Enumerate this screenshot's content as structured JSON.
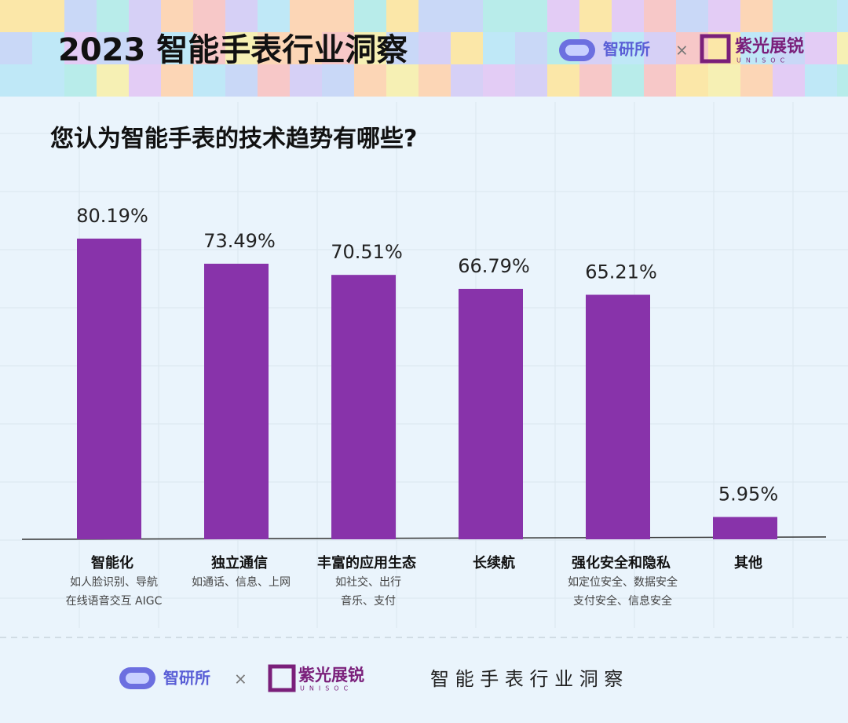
{
  "header": {
    "title": "2023 智能手表行业洞察",
    "logo_a": "智研所",
    "times": "×",
    "logo_b": "紫光展锐",
    "logo_b_sub": "UNISOC"
  },
  "chart_data": {
    "type": "bar",
    "title": "您认为智能手表的技术趋势有哪些?",
    "categories": [
      "智能化",
      "独立通信",
      "丰富的应用生态",
      "长续航",
      "强化安全和隐私",
      "其他"
    ],
    "category_notes": [
      [
        "如人脸识别、导航",
        "在线语音交互 AIGC"
      ],
      [
        "如通话、信息、上网"
      ],
      [
        "如社交、出行",
        "音乐、支付"
      ],
      [],
      [
        "如定位安全、数据安全",
        "支付安全、信息安全"
      ],
      []
    ],
    "values": [
      80.19,
      73.49,
      70.51,
      66.79,
      65.21,
      5.95
    ],
    "value_labels": [
      "80.19%",
      "73.49%",
      "70.51%",
      "66.79%",
      "65.21%",
      "5.95%"
    ],
    "color": "#8833aa"
  },
  "footer": {
    "logo_a": "智研所",
    "times": "×",
    "logo_b": "紫光展锐",
    "logo_b_sub": "UNISOC",
    "tagline": "智 能 手 表 行 业 洞 察"
  }
}
